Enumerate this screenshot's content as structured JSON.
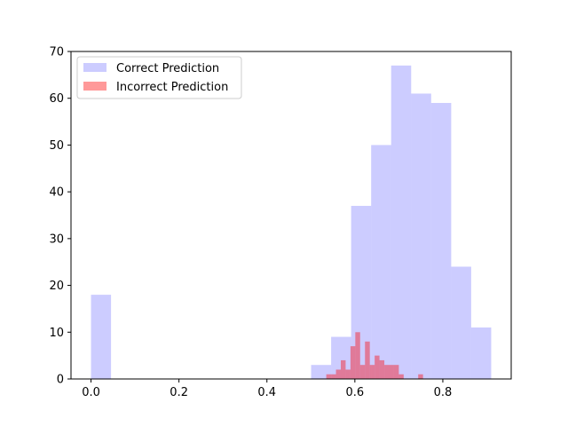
{
  "chart_data": {
    "type": "bar",
    "title": "",
    "xlabel": "",
    "ylabel": "",
    "xlim": [
      -0.0455,
      0.9555
    ],
    "ylim": [
      0,
      70
    ],
    "xticks": [
      0.0,
      0.2,
      0.4,
      0.6,
      0.8
    ],
    "xtick_labels": [
      "0.0",
      "0.2",
      "0.4",
      "0.6",
      "0.8"
    ],
    "yticks": [
      0,
      10,
      20,
      30,
      40,
      50,
      60,
      70
    ],
    "ytick_labels": [
      "0",
      "10",
      "20",
      "30",
      "40",
      "50",
      "60",
      "70"
    ],
    "grid": false,
    "legend_position": "upper-left",
    "series": [
      {
        "name": "Correct Prediction",
        "color": "#0000ff",
        "alpha": 0.2,
        "bins": [
          {
            "x0": 0.0,
            "x1": 0.0455,
            "count": 18
          },
          {
            "x0": 0.0455,
            "x1": 0.091,
            "count": 0
          },
          {
            "x0": 0.091,
            "x1": 0.1365,
            "count": 0
          },
          {
            "x0": 0.1365,
            "x1": 0.182,
            "count": 0
          },
          {
            "x0": 0.182,
            "x1": 0.2275,
            "count": 0
          },
          {
            "x0": 0.2275,
            "x1": 0.273,
            "count": 0
          },
          {
            "x0": 0.273,
            "x1": 0.3185,
            "count": 0
          },
          {
            "x0": 0.3185,
            "x1": 0.364,
            "count": 0
          },
          {
            "x0": 0.364,
            "x1": 0.4095,
            "count": 0
          },
          {
            "x0": 0.4095,
            "x1": 0.455,
            "count": 0
          },
          {
            "x0": 0.455,
            "x1": 0.5005,
            "count": 0
          },
          {
            "x0": 0.5005,
            "x1": 0.546,
            "count": 3
          },
          {
            "x0": 0.546,
            "x1": 0.5915,
            "count": 9
          },
          {
            "x0": 0.5915,
            "x1": 0.637,
            "count": 37
          },
          {
            "x0": 0.637,
            "x1": 0.6825,
            "count": 50
          },
          {
            "x0": 0.6825,
            "x1": 0.728,
            "count": 67
          },
          {
            "x0": 0.728,
            "x1": 0.7735,
            "count": 61
          },
          {
            "x0": 0.7735,
            "x1": 0.819,
            "count": 59
          },
          {
            "x0": 0.819,
            "x1": 0.8645,
            "count": 24
          },
          {
            "x0": 0.8645,
            "x1": 0.91,
            "count": 11
          }
        ]
      },
      {
        "name": "Incorrect Prediction",
        "color": "#ff0000",
        "alpha": 0.4,
        "bins": [
          {
            "x0": 0.535,
            "x1": 0.546,
            "count": 1
          },
          {
            "x0": 0.546,
            "x1": 0.557,
            "count": 1
          },
          {
            "x0": 0.557,
            "x1": 0.568,
            "count": 2
          },
          {
            "x0": 0.568,
            "x1": 0.579,
            "count": 4
          },
          {
            "x0": 0.579,
            "x1": 0.59,
            "count": 2
          },
          {
            "x0": 0.59,
            "x1": 0.601,
            "count": 7
          },
          {
            "x0": 0.601,
            "x1": 0.612,
            "count": 10
          },
          {
            "x0": 0.612,
            "x1": 0.623,
            "count": 3
          },
          {
            "x0": 0.623,
            "x1": 0.634,
            "count": 8
          },
          {
            "x0": 0.634,
            "x1": 0.645,
            "count": 3
          },
          {
            "x0": 0.645,
            "x1": 0.656,
            "count": 5
          },
          {
            "x0": 0.656,
            "x1": 0.667,
            "count": 4
          },
          {
            "x0": 0.667,
            "x1": 0.678,
            "count": 3
          },
          {
            "x0": 0.678,
            "x1": 0.689,
            "count": 3
          },
          {
            "x0": 0.689,
            "x1": 0.7,
            "count": 3
          },
          {
            "x0": 0.7,
            "x1": 0.711,
            "count": 1
          },
          {
            "x0": 0.711,
            "x1": 0.722,
            "count": 0
          },
          {
            "x0": 0.722,
            "x1": 0.733,
            "count": 0
          },
          {
            "x0": 0.733,
            "x1": 0.744,
            "count": 0
          },
          {
            "x0": 0.744,
            "x1": 0.755,
            "count": 1
          }
        ]
      }
    ]
  }
}
